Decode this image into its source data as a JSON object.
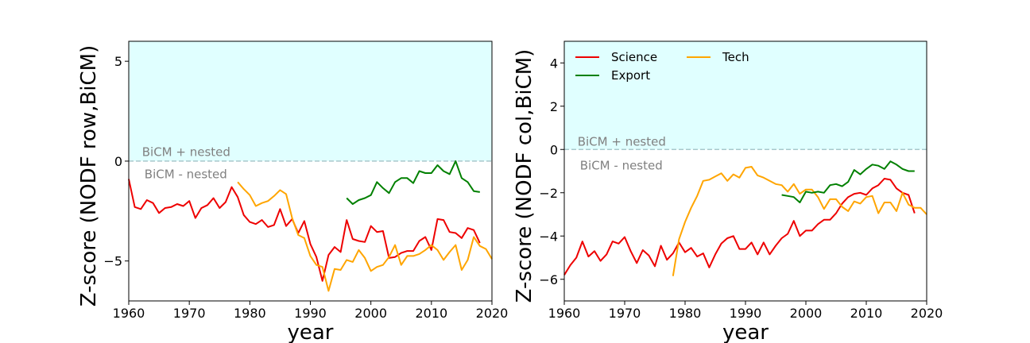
{
  "chart_data": [
    {
      "type": "line",
      "xlabel": "year",
      "ylabel": "Z-score (NODF row,BiCM)",
      "xlim": [
        1960,
        2020
      ],
      "ylim": [
        -7,
        6
      ],
      "xticks": [
        1960,
        1970,
        1980,
        1990,
        2000,
        2010,
        2020
      ],
      "yticks": [
        -5,
        0,
        5
      ],
      "ytick_labels": [
        "−5",
        "0",
        "5"
      ],
      "shaded_region": {
        "from": 0,
        "to": 6,
        "color": "#e0ffff"
      },
      "reference_line": {
        "y": 0,
        "color": "#a9c8cc"
      },
      "annotations": [
        {
          "text": "BiCM + nested",
          "x": 1962.2,
          "y": 0.45
        },
        {
          "text": "BiCM - nested",
          "x": 1962.6,
          "y": -0.65
        }
      ],
      "legend": null,
      "series": [
        {
          "name": "Science",
          "color": "#ee0000",
          "x": [
            1960,
            1961,
            1962,
            1963,
            1964,
            1965,
            1966,
            1967,
            1968,
            1969,
            1970,
            1971,
            1972,
            1973,
            1974,
            1975,
            1976,
            1977,
            1978,
            1979,
            1980,
            1981,
            1982,
            1983,
            1984,
            1985,
            1986,
            1987,
            1988,
            1989,
            1990,
            1991,
            1992,
            1993,
            1994,
            1995,
            1996,
            1997,
            1998,
            1999,
            2000,
            2001,
            2002,
            2003,
            2004,
            2005,
            2006,
            2007,
            2008,
            2009,
            2010,
            2011,
            2012,
            2013,
            2014,
            2015,
            2016,
            2017,
            2018
          ],
          "y": [
            -0.9,
            -2.3,
            -2.4,
            -1.95,
            -2.1,
            -2.6,
            -2.35,
            -2.3,
            -2.15,
            -2.25,
            -2.0,
            -2.85,
            -2.35,
            -2.2,
            -1.85,
            -2.35,
            -2.05,
            -1.3,
            -1.8,
            -2.7,
            -3.05,
            -3.15,
            -2.95,
            -3.3,
            -3.2,
            -2.4,
            -3.25,
            -2.9,
            -3.6,
            -3.0,
            -4.15,
            -4.8,
            -6.0,
            -4.7,
            -4.3,
            -4.55,
            -2.95,
            -3.9,
            -4.0,
            -4.05,
            -3.25,
            -3.55,
            -3.5,
            -4.85,
            -4.8,
            -4.6,
            -4.5,
            -4.5,
            -4.0,
            -3.8,
            -4.45,
            -2.9,
            -2.95,
            -3.55,
            -3.6,
            -3.85,
            -3.35,
            -3.45,
            -4.1
          ]
        },
        {
          "name": "Tech",
          "color": "#ffa500",
          "x": [
            1978,
            1979,
            1980,
            1981,
            1982,
            1983,
            1984,
            1985,
            1986,
            1987,
            1988,
            1989,
            1990,
            1991,
            1992,
            1993,
            1994,
            1995,
            1996,
            1997,
            1998,
            1999,
            2000,
            2001,
            2002,
            2003,
            2004,
            2005,
            2006,
            2007,
            2008,
            2009,
            2010,
            2011,
            2012,
            2013,
            2014,
            2015,
            2016,
            2017,
            2018,
            2019,
            2020
          ],
          "y": [
            -1.05,
            -1.4,
            -1.7,
            -2.25,
            -2.1,
            -2.0,
            -1.75,
            -1.45,
            -1.65,
            -2.85,
            -3.7,
            -3.85,
            -4.75,
            -5.2,
            -5.3,
            -6.5,
            -5.4,
            -5.45,
            -4.95,
            -5.05,
            -4.45,
            -4.85,
            -5.5,
            -5.3,
            -5.2,
            -4.8,
            -4.2,
            -5.2,
            -4.75,
            -4.75,
            -4.65,
            -4.45,
            -4.2,
            -4.45,
            -4.95,
            -4.55,
            -4.2,
            -5.45,
            -4.95,
            -3.8,
            -4.25,
            -4.4,
            -4.9
          ]
        },
        {
          "name": "Export",
          "color": "#008000",
          "x": [
            1996,
            1997,
            1998,
            1999,
            2000,
            2001,
            2002,
            2003,
            2004,
            2005,
            2006,
            2007,
            2008,
            2009,
            2010,
            2011,
            2012,
            2013,
            2014,
            2015,
            2016,
            2017,
            2018
          ],
          "y": [
            -1.85,
            -2.15,
            -1.95,
            -1.85,
            -1.7,
            -1.05,
            -1.35,
            -1.6,
            -1.05,
            -0.85,
            -0.85,
            -1.1,
            -0.5,
            -0.6,
            -0.6,
            -0.2,
            -0.5,
            -0.65,
            0.0,
            -0.85,
            -1.05,
            -1.5,
            -1.55
          ]
        }
      ]
    },
    {
      "type": "line",
      "xlabel": "year",
      "ylabel": "Z-score (NODF col,BiCM)",
      "xlim": [
        1960,
        2020
      ],
      "ylim": [
        -7,
        5
      ],
      "xticks": [
        1960,
        1970,
        1980,
        1990,
        2000,
        2010,
        2020
      ],
      "yticks": [
        -6,
        -4,
        -2,
        0,
        2,
        4
      ],
      "ytick_labels": [
        "−6",
        "−4",
        "−2",
        "0",
        "2",
        "4"
      ],
      "shaded_region": {
        "from": 0,
        "to": 5,
        "color": "#e0ffff"
      },
      "reference_line": {
        "y": 0,
        "color": "#a9c8cc"
      },
      "annotations": [
        {
          "text": "BiCM + nested",
          "x": 1962.2,
          "y": 0.35
        },
        {
          "text": "BiCM - nested",
          "x": 1962.6,
          "y": -0.75
        }
      ],
      "legend": {
        "placement": "top-left",
        "entries": [
          "Science",
          "Export",
          "Tech"
        ]
      },
      "series": [
        {
          "name": "Science",
          "color": "#ee0000",
          "x": [
            1960,
            1961,
            1962,
            1963,
            1964,
            1965,
            1966,
            1967,
            1968,
            1969,
            1970,
            1971,
            1972,
            1973,
            1974,
            1975,
            1976,
            1977,
            1978,
            1979,
            1980,
            1981,
            1982,
            1983,
            1984,
            1985,
            1986,
            1987,
            1988,
            1989,
            1990,
            1991,
            1992,
            1993,
            1994,
            1995,
            1996,
            1997,
            1998,
            1999,
            2000,
            2001,
            2002,
            2003,
            2004,
            2005,
            2006,
            2007,
            2008,
            2009,
            2010,
            2011,
            2012,
            2013,
            2014,
            2015,
            2016,
            2017,
            2018
          ],
          "y": [
            -5.8,
            -5.35,
            -5.0,
            -4.25,
            -4.95,
            -4.7,
            -5.15,
            -4.85,
            -4.25,
            -4.35,
            -4.05,
            -4.7,
            -5.25,
            -4.65,
            -4.9,
            -5.4,
            -4.45,
            -5.1,
            -4.8,
            -4.3,
            -4.75,
            -4.55,
            -4.95,
            -4.8,
            -5.45,
            -4.85,
            -4.35,
            -4.1,
            -4.0,
            -4.6,
            -4.6,
            -4.3,
            -4.85,
            -4.3,
            -4.85,
            -4.45,
            -4.1,
            -3.9,
            -3.3,
            -4.0,
            -3.75,
            -3.75,
            -3.45,
            -3.25,
            -3.25,
            -2.95,
            -2.5,
            -2.2,
            -2.05,
            -2.0,
            -2.1,
            -1.8,
            -1.65,
            -1.35,
            -1.4,
            -1.8,
            -2.0,
            -2.1,
            -2.95
          ]
        },
        {
          "name": "Tech",
          "color": "#ffa500",
          "x": [
            1978,
            1979,
            1980,
            1981,
            1982,
            1983,
            1984,
            1985,
            1986,
            1987,
            1988,
            1989,
            1990,
            1991,
            1992,
            1993,
            1994,
            1995,
            1996,
            1997,
            1998,
            1999,
            2000,
            2001,
            2002,
            2003,
            2004,
            2005,
            2006,
            2007,
            2008,
            2009,
            2010,
            2011,
            2012,
            2013,
            2014,
            2015,
            2016,
            2017,
            2018,
            2019,
            2020
          ],
          "y": [
            -5.85,
            -4.15,
            -3.35,
            -2.7,
            -2.15,
            -1.45,
            -1.4,
            -1.25,
            -1.1,
            -1.45,
            -1.15,
            -1.3,
            -0.85,
            -0.8,
            -1.2,
            -1.3,
            -1.45,
            -1.6,
            -1.65,
            -1.95,
            -1.6,
            -2.05,
            -1.85,
            -1.85,
            -2.2,
            -2.75,
            -2.3,
            -2.3,
            -2.65,
            -2.85,
            -2.4,
            -2.5,
            -2.2,
            -2.15,
            -2.95,
            -2.45,
            -2.45,
            -2.85,
            -2.0,
            -2.55,
            -2.7,
            -2.7,
            -3.0
          ]
        },
        {
          "name": "Export",
          "color": "#008000",
          "x": [
            1996,
            1997,
            1998,
            1999,
            2000,
            2001,
            2002,
            2003,
            2004,
            2005,
            2006,
            2007,
            2008,
            2009,
            2010,
            2011,
            2012,
            2013,
            2014,
            2015,
            2016,
            2017,
            2018
          ],
          "y": [
            -2.1,
            -2.15,
            -2.2,
            -2.45,
            -1.95,
            -2.0,
            -1.95,
            -2.0,
            -1.65,
            -1.6,
            -1.7,
            -1.5,
            -0.95,
            -1.15,
            -0.9,
            -0.7,
            -0.75,
            -0.9,
            -0.55,
            -0.7,
            -0.9,
            -1.0,
            -1.0
          ]
        }
      ]
    }
  ]
}
